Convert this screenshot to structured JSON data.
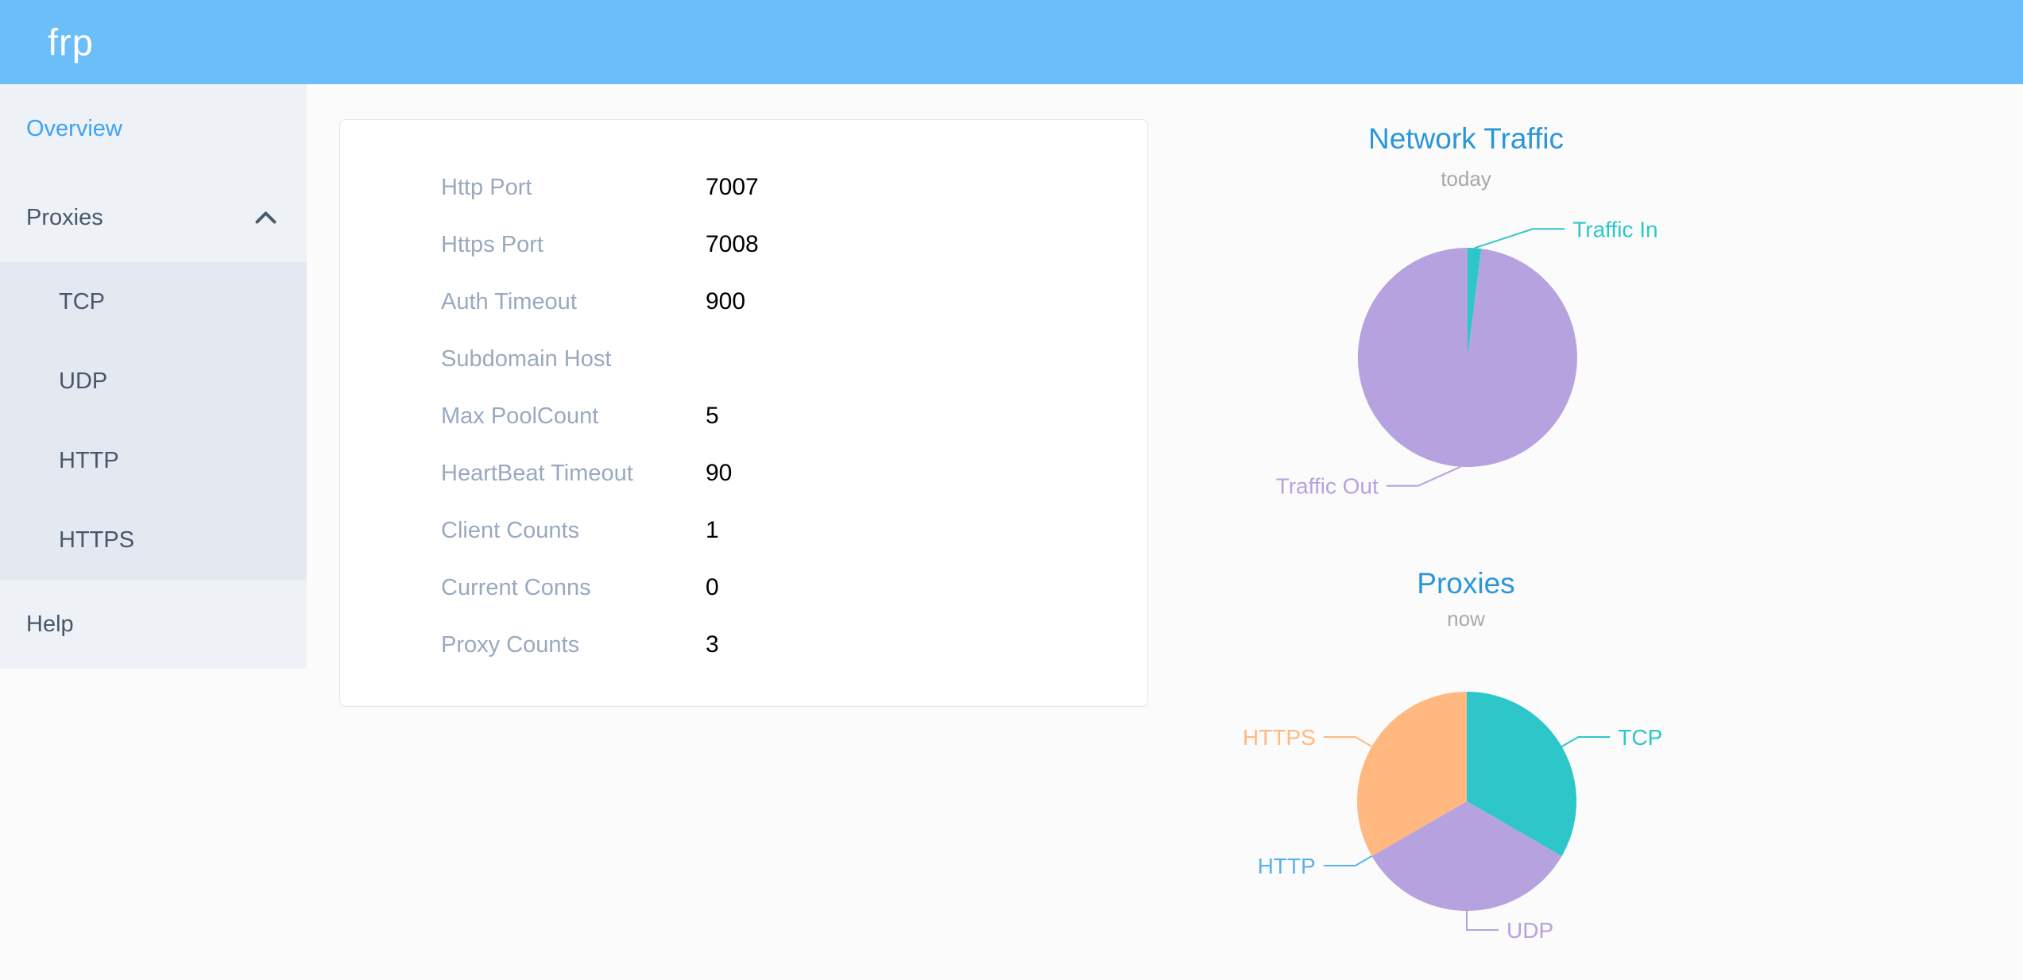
{
  "header": {
    "logo": "frp"
  },
  "sidebar": {
    "overview_label": "Overview",
    "proxies_label": "Proxies",
    "proxy_types": [
      "TCP",
      "UDP",
      "HTTP",
      "HTTPS"
    ],
    "help_label": "Help"
  },
  "server_info": {
    "rows": [
      {
        "label": "Http Port",
        "value": "7007"
      },
      {
        "label": "Https Port",
        "value": "7008"
      },
      {
        "label": "Auth Timeout",
        "value": "900"
      },
      {
        "label": "Subdomain Host",
        "value": ""
      },
      {
        "label": "Max PoolCount",
        "value": "5"
      },
      {
        "label": "HeartBeat Timeout",
        "value": "90"
      },
      {
        "label": "Client Counts",
        "value": "1"
      },
      {
        "label": "Current Conns",
        "value": "0"
      },
      {
        "label": "Proxy Counts",
        "value": "3"
      }
    ]
  },
  "chart_data": [
    {
      "type": "pie",
      "title": "Network Traffic",
      "subtitle": "today",
      "legend_position": "none",
      "series": [
        {
          "name": "Traffic In",
          "value": 2,
          "color": "#2ec7c9"
        },
        {
          "name": "Traffic Out",
          "value": 98,
          "color": "#b6a2de"
        }
      ],
      "unit": "estimated percent of today's traffic"
    },
    {
      "type": "pie",
      "title": "Proxies",
      "subtitle": "now",
      "legend_position": "none",
      "series": [
        {
          "name": "TCP",
          "value": 1,
          "color": "#2ec7c9"
        },
        {
          "name": "UDP",
          "value": 1,
          "color": "#b6a2de"
        },
        {
          "name": "HTTP",
          "value": 0,
          "color": "#5ab1ef"
        },
        {
          "name": "HTTPS",
          "value": 1,
          "color": "#ffb980"
        }
      ],
      "unit": "proxy count"
    }
  ],
  "colors": {
    "header_bg": "#6cbef9",
    "sidebar_bg": "#eef1f6",
    "submenu_bg": "#e4e8f1",
    "active_menu_item": "#3da2f8",
    "menu_text": "#48576a",
    "chart_title": "#2b97d9",
    "chart_subtitle": "#a8a8a8",
    "info_label": "#99a9bf",
    "teal": "#2ec7c9",
    "purple": "#b6a2de",
    "blue": "#5ab1ef",
    "orange": "#ffb980"
  }
}
